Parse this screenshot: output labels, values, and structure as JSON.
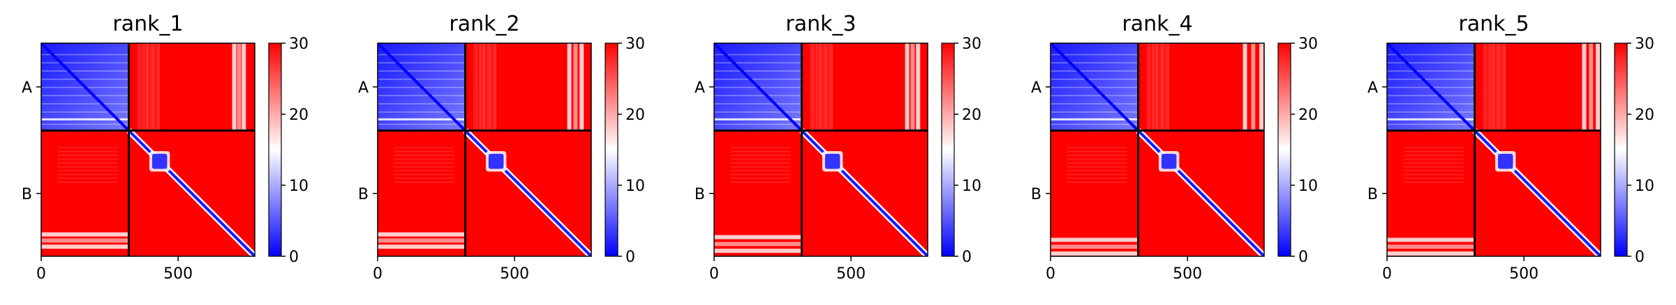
{
  "chart_data": [
    {
      "type": "heatmap",
      "title": "rank_1",
      "x_range": [
        0,
        780
      ],
      "y_categories": [
        "A",
        "B"
      ],
      "x_ticks": [
        0,
        500
      ],
      "chain_boundary": 320,
      "colorbar": {
        "colormap": "bwr",
        "range": [
          0,
          30
        ],
        "ticks": [
          0,
          10,
          20,
          30
        ]
      },
      "grid": false,
      "white_bands": {
        "A_cols": [
          705,
          740
        ],
        "B_rows": [
          700,
          745
        ]
      }
    },
    {
      "type": "heatmap",
      "title": "rank_2",
      "x_range": [
        0,
        780
      ],
      "y_categories": [
        "A",
        "B"
      ],
      "x_ticks": [
        0,
        500
      ],
      "chain_boundary": 320,
      "colorbar": {
        "colormap": "bwr",
        "range": [
          0,
          30
        ],
        "ticks": [
          0,
          10,
          20,
          30
        ]
      },
      "grid": false,
      "white_bands": {
        "A_cols": [
          700,
          745
        ],
        "B_rows": [
          700,
          745
        ]
      }
    },
    {
      "type": "heatmap",
      "title": "rank_3",
      "x_range": [
        0,
        780
      ],
      "y_categories": [
        "A",
        "B"
      ],
      "x_ticks": [
        0,
        500
      ],
      "chain_boundary": 320,
      "colorbar": {
        "colormap": "bwr",
        "range": [
          0,
          30
        ],
        "ticks": [
          0,
          10,
          20,
          30
        ]
      },
      "grid": false,
      "white_bands": {
        "A_cols": [
          705,
          745
        ],
        "B_rows": [
          710,
          760
        ]
      }
    },
    {
      "type": "heatmap",
      "title": "rank_4",
      "x_range": [
        0,
        780
      ],
      "y_categories": [
        "A",
        "B"
      ],
      "x_ticks": [
        0,
        500
      ],
      "chain_boundary": 320,
      "colorbar": {
        "colormap": "bwr",
        "range": [
          0,
          30
        ],
        "ticks": [
          0,
          10,
          20,
          30
        ]
      },
      "grid": false,
      "white_bands": {
        "A_cols": [
          710,
          770
        ],
        "B_rows": [
          720,
          770
        ]
      }
    },
    {
      "type": "heatmap",
      "title": "rank_5",
      "x_range": [
        0,
        780
      ],
      "y_categories": [
        "A",
        "B"
      ],
      "x_ticks": [
        0,
        500
      ],
      "chain_boundary": 320,
      "colorbar": {
        "colormap": "bwr",
        "range": [
          0,
          30
        ],
        "ticks": [
          0,
          10,
          20,
          30
        ]
      },
      "grid": false,
      "white_bands": {
        "A_cols": [
          720,
          770
        ],
        "B_rows": [
          720,
          770
        ]
      }
    }
  ]
}
